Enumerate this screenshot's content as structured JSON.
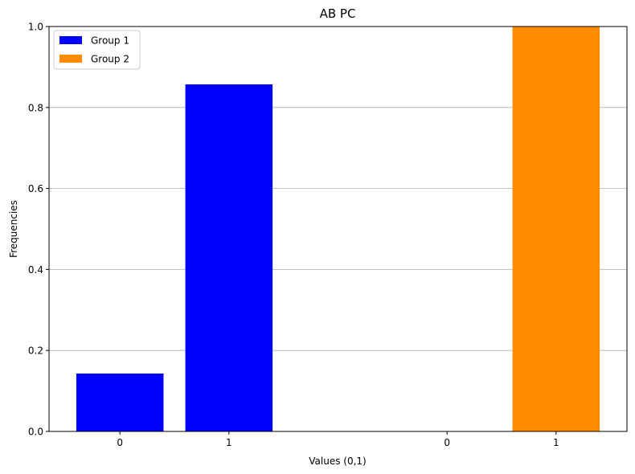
{
  "chart_data": {
    "type": "bar",
    "title": "AB PC",
    "xlabel": "Values (0,1)",
    "ylabel": "Frequencies",
    "ylim": [
      0,
      1
    ],
    "yticks": [
      0.0,
      0.2,
      0.4,
      0.6,
      0.8,
      1.0
    ],
    "ytick_labels": [
      "0.0",
      "0.2",
      "0.4",
      "0.6",
      "0.8",
      "1.0"
    ],
    "grid": "y",
    "legend_position": "top-left",
    "series": [
      {
        "name": "Group 1",
        "color": "#0000ff",
        "categories": [
          "0",
          "1"
        ],
        "x": [
          0,
          1
        ],
        "values": [
          0.143,
          0.857
        ]
      },
      {
        "name": "Group 2",
        "color": "#ff8c00",
        "categories": [
          "0",
          "1"
        ],
        "x": [
          3,
          4
        ],
        "values": [
          0.0,
          1.0
        ]
      }
    ],
    "xlim": [
      -0.65,
      4.65
    ]
  }
}
